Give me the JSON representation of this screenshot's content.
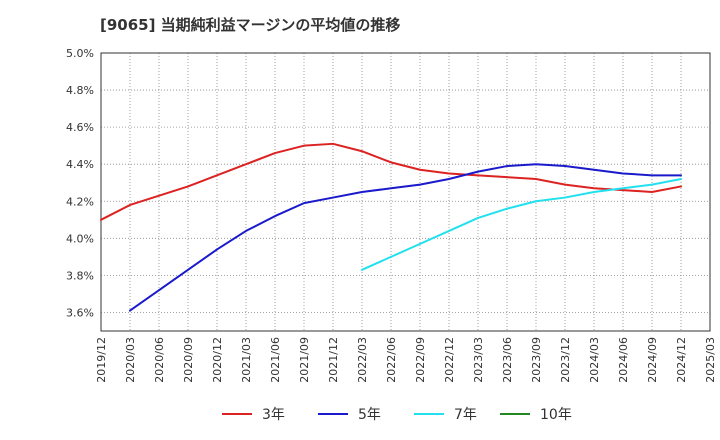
{
  "title": "[9065]  当期純利益マージンの平均値の推移",
  "chart_data": {
    "type": "line",
    "title": "[9065]  当期純利益マージンの平均値の推移",
    "xlabel": "",
    "ylabel": "",
    "x_ticks": [
      "2019/12",
      "2020/03",
      "2020/06",
      "2020/09",
      "2020/12",
      "2021/03",
      "2021/06",
      "2021/09",
      "2021/12",
      "2022/03",
      "2022/06",
      "2022/09",
      "2022/12",
      "2023/03",
      "2023/06",
      "2023/09",
      "2023/12",
      "2024/03",
      "2024/06",
      "2024/09",
      "2024/12",
      "2025/03"
    ],
    "y_ticks": [
      "3.6%",
      "3.8%",
      "4.0%",
      "4.2%",
      "4.4%",
      "4.6%",
      "4.8%",
      "5.0%"
    ],
    "ylim": [
      3.5,
      5.0
    ],
    "grid": true,
    "legend_position": "bottom",
    "series": [
      {
        "name": "3年",
        "color": "#dd2222",
        "x": [
          "2019/12",
          "2020/03",
          "2020/06",
          "2020/09",
          "2020/12",
          "2021/03",
          "2021/06",
          "2021/09",
          "2021/12",
          "2022/03",
          "2022/06",
          "2022/09",
          "2022/12",
          "2023/03",
          "2023/06",
          "2023/09",
          "2023/12",
          "2024/03",
          "2024/06",
          "2024/09",
          "2024/12"
        ],
        "values": [
          4.1,
          4.18,
          4.23,
          4.28,
          4.34,
          4.4,
          4.46,
          4.5,
          4.51,
          4.47,
          4.41,
          4.37,
          4.35,
          4.34,
          4.33,
          4.32,
          4.29,
          4.27,
          4.26,
          4.25,
          4.28
        ]
      },
      {
        "name": "5年",
        "color": "#1a1acc",
        "x": [
          "2020/03",
          "2020/06",
          "2020/09",
          "2020/12",
          "2021/03",
          "2021/06",
          "2021/09",
          "2021/12",
          "2022/03",
          "2022/06",
          "2022/09",
          "2022/12",
          "2023/03",
          "2023/06",
          "2023/09",
          "2023/12",
          "2024/03",
          "2024/06",
          "2024/09",
          "2024/12"
        ],
        "values": [
          3.61,
          3.72,
          3.83,
          3.94,
          4.04,
          4.12,
          4.19,
          4.22,
          4.25,
          4.27,
          4.29,
          4.32,
          4.36,
          4.39,
          4.4,
          4.39,
          4.37,
          4.35,
          4.34,
          4.34
        ]
      },
      {
        "name": "7年",
        "color": "#22e0ee",
        "x": [
          "2022/03",
          "2022/06",
          "2022/09",
          "2022/12",
          "2023/03",
          "2023/06",
          "2023/09",
          "2023/12",
          "2024/03",
          "2024/06",
          "2024/09",
          "2024/12"
        ],
        "values": [
          3.83,
          3.9,
          3.97,
          4.04,
          4.11,
          4.16,
          4.2,
          4.22,
          4.25,
          4.27,
          4.29,
          4.32
        ]
      },
      {
        "name": "10年",
        "color": "#228822",
        "x": [],
        "values": []
      }
    ]
  }
}
